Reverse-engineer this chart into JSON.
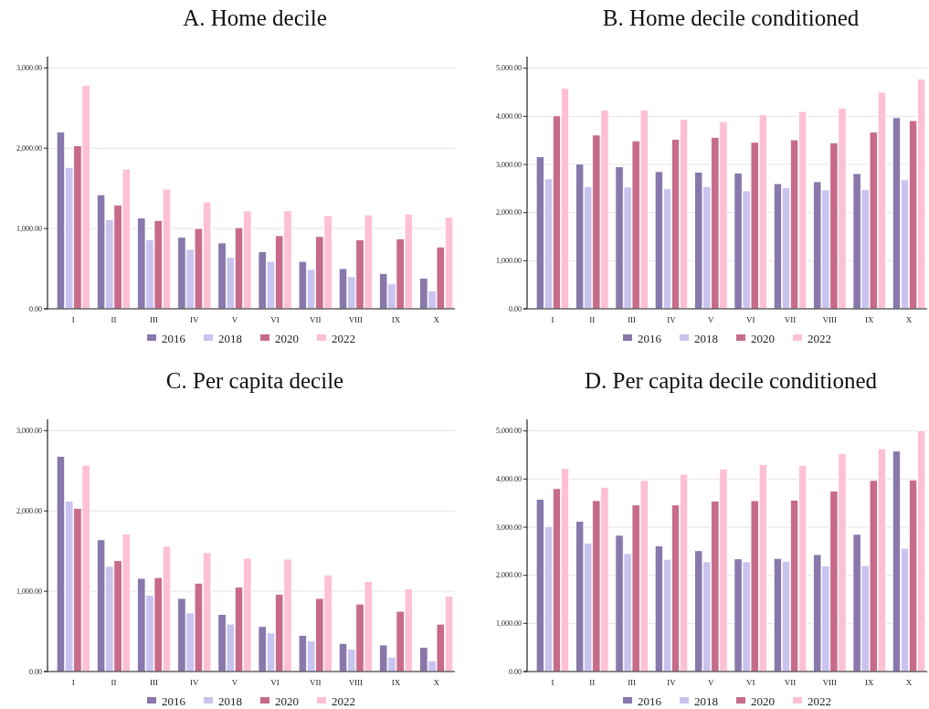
{
  "chart_data": [
    {
      "type": "bar",
      "title": "A. Home decile",
      "categories": [
        "I",
        "II",
        "III",
        "IV",
        "V",
        "VI",
        "VII",
        "VIII",
        "IX",
        "X"
      ],
      "ylim": [
        0,
        3140
      ],
      "yticks": [
        {
          "value": 0,
          "label": "0.00"
        },
        {
          "value": 1000,
          "label": "1,000.00"
        },
        {
          "value": 2000,
          "label": "2,000.00"
        },
        {
          "value": 3000,
          "label": "3,000.00"
        }
      ],
      "grid": "y",
      "legend": "bottom",
      "series": [
        {
          "name": "2016",
          "color": "#8878ab",
          "values": [
            2200,
            1420,
            1130,
            890,
            820,
            710,
            590,
            500,
            440,
            380
          ]
        },
        {
          "name": "2018",
          "color": "#c9c3ef",
          "values": [
            1760,
            1110,
            860,
            740,
            640,
            590,
            490,
            400,
            310,
            220
          ]
        },
        {
          "name": "2020",
          "color": "#c76b8a",
          "values": [
            2030,
            1290,
            1100,
            1000,
            1010,
            910,
            900,
            860,
            870,
            770
          ]
        },
        {
          "name": "2022",
          "color": "#fec0d4",
          "values": [
            2780,
            1740,
            1490,
            1330,
            1220,
            1220,
            1160,
            1170,
            1180,
            1140
          ]
        }
      ]
    },
    {
      "type": "bar",
      "title": "B. Home decile conditioned",
      "categories": [
        "I",
        "II",
        "III",
        "IV",
        "V",
        "VI",
        "VII",
        "VIII",
        "IX",
        "X"
      ],
      "ylim": [
        0,
        5240
      ],
      "yticks": [
        {
          "value": 0,
          "label": "0.00"
        },
        {
          "value": 1000,
          "label": "1,000.00"
        },
        {
          "value": 2000,
          "label": "2,000.00"
        },
        {
          "value": 3000,
          "label": "3,000.00"
        },
        {
          "value": 4000,
          "label": "4,000.00"
        },
        {
          "value": 5000,
          "label": "5,000.00"
        }
      ],
      "grid": "y",
      "legend": "bottom",
      "series": [
        {
          "name": "2016",
          "color": "#8878ab",
          "values": [
            3160,
            3010,
            2950,
            2850,
            2840,
            2820,
            2600,
            2640,
            2810,
            3970
          ]
        },
        {
          "name": "2018",
          "color": "#c9c3ef",
          "values": [
            2700,
            2540,
            2530,
            2500,
            2540,
            2450,
            2520,
            2470,
            2480,
            2680
          ]
        },
        {
          "name": "2020",
          "color": "#c76b8a",
          "values": [
            4010,
            3610,
            3490,
            3520,
            3560,
            3460,
            3510,
            3450,
            3670,
            3910
          ]
        },
        {
          "name": "2022",
          "color": "#fec0d4",
          "values": [
            4580,
            4130,
            4130,
            3940,
            3890,
            4030,
            4100,
            4170,
            4500,
            4770
          ]
        }
      ]
    },
    {
      "type": "bar",
      "title": "C. Per capita decile",
      "categories": [
        "I",
        "II",
        "III",
        "IV",
        "V",
        "VI",
        "VII",
        "VIII",
        "IX",
        "X"
      ],
      "ylim": [
        0,
        3140
      ],
      "yticks": [
        {
          "value": 0,
          "label": "0.00"
        },
        {
          "value": 1000,
          "label": "1,000.00"
        },
        {
          "value": 2000,
          "label": "2,000.00"
        },
        {
          "value": 3000,
          "label": "3,000.00"
        }
      ],
      "grid": "y",
      "legend": "bottom",
      "series": [
        {
          "name": "2016",
          "color": "#8878ab",
          "values": [
            2680,
            1640,
            1160,
            910,
            710,
            560,
            450,
            350,
            330,
            300
          ]
        },
        {
          "name": "2018",
          "color": "#c9c3ef",
          "values": [
            2120,
            1310,
            950,
            730,
            590,
            480,
            380,
            280,
            180,
            130
          ]
        },
        {
          "name": "2020",
          "color": "#c76b8a",
          "values": [
            2030,
            1380,
            1170,
            1100,
            1050,
            960,
            910,
            840,
            750,
            590
          ]
        },
        {
          "name": "2022",
          "color": "#fec0d4",
          "values": [
            2570,
            1710,
            1560,
            1480,
            1410,
            1400,
            1200,
            1120,
            1030,
            940
          ]
        }
      ]
    },
    {
      "type": "bar",
      "title": "D. Per capita decile conditioned",
      "categories": [
        "I",
        "II",
        "III",
        "IV",
        "V",
        "VI",
        "VII",
        "VIII",
        "IX",
        "X"
      ],
      "ylim": [
        0,
        5240
      ],
      "yticks": [
        {
          "value": 0,
          "label": "0.00"
        },
        {
          "value": 1000,
          "label": "1,000.00"
        },
        {
          "value": 2000,
          "label": "2,000.00"
        },
        {
          "value": 3000,
          "label": "3,000.00"
        },
        {
          "value": 4000,
          "label": "4,000.00"
        },
        {
          "value": 5000,
          "label": "5,000.00"
        }
      ],
      "grid": "y",
      "legend": "bottom",
      "series": [
        {
          "name": "2016",
          "color": "#8878ab",
          "values": [
            3580,
            3120,
            2830,
            2610,
            2510,
            2340,
            2350,
            2430,
            2850,
            4580
          ]
        },
        {
          "name": "2018",
          "color": "#c9c3ef",
          "values": [
            3010,
            2670,
            2450,
            2330,
            2280,
            2280,
            2290,
            2190,
            2200,
            2560
          ]
        },
        {
          "name": "2020",
          "color": "#c76b8a",
          "values": [
            3800,
            3550,
            3460,
            3460,
            3540,
            3550,
            3560,
            3750,
            3970,
            3980
          ]
        },
        {
          "name": "2022",
          "color": "#fec0d4",
          "values": [
            4220,
            3830,
            3970,
            4100,
            4210,
            4300,
            4280,
            4530,
            4630,
            5000
          ]
        }
      ]
    }
  ]
}
